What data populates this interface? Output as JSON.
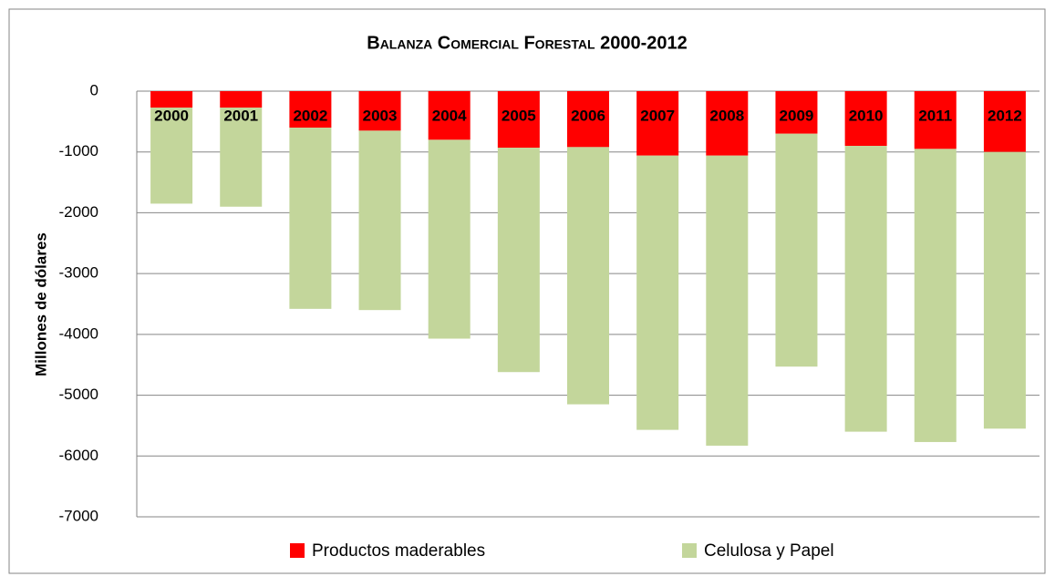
{
  "chart_data": {
    "type": "stacked_bar",
    "title": "Balanza Comercial Forestal 2000-2012",
    "y_label": "Millones de dólares",
    "categories": [
      "2000",
      "2001",
      "2002",
      "2003",
      "2004",
      "2005",
      "2006",
      "2007",
      "2008",
      "2009",
      "2010",
      "2011",
      "2012"
    ],
    "series": [
      {
        "name": "Productos maderables",
        "color": "#ff0000",
        "values": [
          -270,
          -270,
          -600,
          -650,
          -800,
          -930,
          -920,
          -1060,
          -1060,
          -700,
          -900,
          -950,
          -1000
        ]
      },
      {
        "name": "Celulosa y Papel",
        "color": "#c3d69b",
        "values": [
          -1580,
          -1630,
          -2980,
          -2950,
          -3270,
          -3690,
          -4230,
          -4510,
          -4770,
          -3830,
          -4700,
          -4820,
          -4550
        ]
      }
    ],
    "ylim": [
      -7000,
      0
    ],
    "yticks": [
      0,
      -1000,
      -2000,
      -3000,
      -4000,
      -5000,
      -6000,
      -7000
    ],
    "grid": true,
    "legend": "bottom"
  }
}
